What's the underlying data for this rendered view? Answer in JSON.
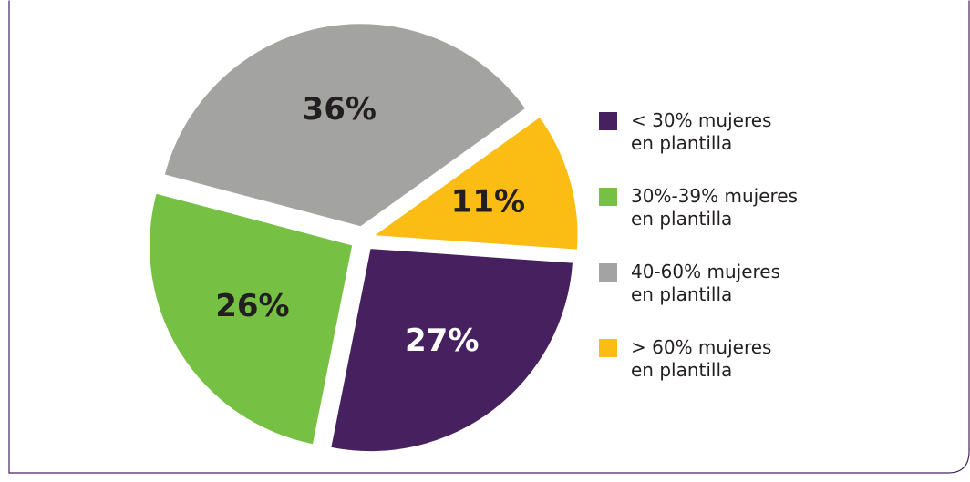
{
  "chart_data": {
    "type": "pie",
    "categories": [
      "< 30% mujeres\nen plantilla",
      "30%-39% mujeres\nen plantilla",
      "40-60% mujeres\nen plantilla",
      "> 60% mujeres\nen plantilla"
    ],
    "values": [
      27,
      26,
      36,
      11
    ],
    "value_labels": [
      "27%",
      "26%",
      "36%",
      "11%"
    ],
    "colors": [
      "#47215f",
      "#76c043",
      "#a3a3a1",
      "#fbbd13"
    ],
    "label_colors": [
      "#ffffff",
      "#231f20",
      "#231f20",
      "#231f20"
    ],
    "legend": "right"
  }
}
